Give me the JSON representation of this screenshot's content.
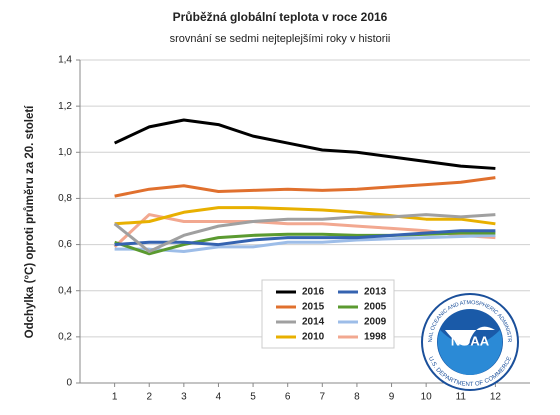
{
  "chart_data": {
    "type": "line",
    "title": "Průběžná globální teplota v roce 2016",
    "subtitle": "srovnání se sedmi nejteplejšími roky v historii",
    "y_label": "Odchylka (°C) oproti průměru za 20. století",
    "x": [
      1,
      2,
      3,
      4,
      5,
      6,
      7,
      8,
      9,
      10,
      11,
      12
    ],
    "xlim": [
      0,
      13
    ],
    "ylim": [
      0,
      1.4
    ],
    "yticks": [
      0,
      {
        "value": 0.2,
        "label": "0,2"
      },
      {
        "value": 0.4,
        "label": "0,4"
      },
      {
        "value": 0.6,
        "label": "0,6"
      },
      {
        "value": 0.8,
        "label": "0,8"
      },
      {
        "value": 1.0,
        "label": "1,0"
      },
      {
        "value": 1.2,
        "label": "1,2"
      },
      {
        "value": 1.4,
        "label": "1,4"
      }
    ],
    "grid": true,
    "series": [
      {
        "name": "2016",
        "color": "#000000",
        "values": [
          1.04,
          1.11,
          1.14,
          1.12,
          1.07,
          1.04,
          1.01,
          1.0,
          0.98,
          0.96,
          0.94,
          0.93
        ]
      },
      {
        "name": "2015",
        "color": "#e0702e",
        "values": [
          0.81,
          0.84,
          0.855,
          0.83,
          0.835,
          0.84,
          0.835,
          0.84,
          0.85,
          0.86,
          0.87,
          0.89
        ]
      },
      {
        "name": "2014",
        "color": "#a0a0a0",
        "values": [
          0.69,
          0.57,
          0.64,
          0.68,
          0.7,
          0.71,
          0.71,
          0.72,
          0.72,
          0.73,
          0.72,
          0.73
        ]
      },
      {
        "name": "2010",
        "color": "#e8b000",
        "values": [
          0.69,
          0.7,
          0.74,
          0.76,
          0.76,
          0.755,
          0.75,
          0.74,
          0.725,
          0.71,
          0.71,
          0.69
        ]
      },
      {
        "name": "2013",
        "color": "#3563b0",
        "values": [
          0.6,
          0.61,
          0.61,
          0.6,
          0.62,
          0.63,
          0.63,
          0.63,
          0.64,
          0.65,
          0.66,
          0.66
        ]
      },
      {
        "name": "2005",
        "color": "#5b9a30",
        "values": [
          0.61,
          0.56,
          0.6,
          0.63,
          0.64,
          0.645,
          0.645,
          0.64,
          0.64,
          0.645,
          0.65,
          0.65
        ]
      },
      {
        "name": "2009",
        "color": "#9dbde8",
        "values": [
          0.58,
          0.58,
          0.57,
          0.59,
          0.59,
          0.61,
          0.61,
          0.62,
          0.625,
          0.63,
          0.635,
          0.64
        ]
      },
      {
        "name": "1998",
        "color": "#f2a890",
        "values": [
          0.59,
          0.73,
          0.7,
          0.7,
          0.7,
          0.69,
          0.69,
          0.68,
          0.67,
          0.66,
          0.64,
          0.63
        ]
      }
    ],
    "logo": {
      "label": "NOAA",
      "ring_top": "NATIONAL OCEANIC AND ATMOSPHERIC ADMINISTRATION",
      "ring_bottom": "U.S. DEPARTMENT OF COMMERCE"
    }
  }
}
